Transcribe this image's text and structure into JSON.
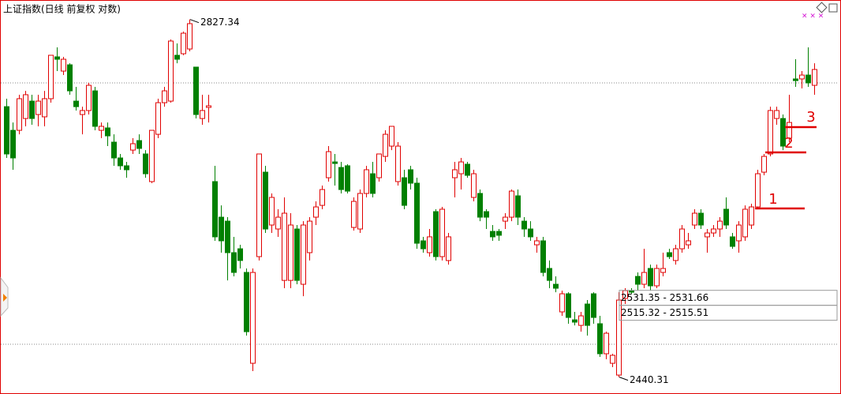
{
  "chart_data": {
    "type": "candlestick",
    "title": "上证指数(日线 前复权 对数)",
    "up_color": "#e00000",
    "down_color": "#008000",
    "ylim": [
      2424.6,
      2845
    ],
    "high_label": 2827.34,
    "low_label": 2440.31,
    "gaps": [
      {
        "low": 2531.35,
        "high": 2531.66,
        "label": "2531.35 - 2531.66"
      },
      {
        "low": 2515.32,
        "high": 2515.51,
        "label": "2515.32 - 2515.51"
      }
    ],
    "markers": [
      "1",
      "2",
      "3"
    ],
    "candles": [
      [
        2733.0,
        2741.6,
        2677.5,
        2681.8
      ],
      [
        2707.4,
        2715.9,
        2664.7,
        2677.5
      ],
      [
        2707.4,
        2745.9,
        2703.1,
        2741.6
      ],
      [
        2720.2,
        2750.1,
        2711.7,
        2745.9
      ],
      [
        2739.0,
        2745.9,
        2713.4,
        2720.2
      ],
      [
        2724.5,
        2745.9,
        2711.7,
        2739.0
      ],
      [
        2722.0,
        2750.1,
        2711.7,
        2741.6
      ],
      [
        2741.6,
        2788.6,
        2737.3,
        2788.6
      ],
      [
        2786.9,
        2797.1,
        2771.5,
        2784.3
      ],
      [
        2771.5,
        2786.9,
        2767.2,
        2784.3
      ],
      [
        2778.3,
        2780.0,
        2745.9,
        2750.1
      ],
      [
        2739.0,
        2754.4,
        2728.8,
        2733.0
      ],
      [
        2724.5,
        2733.0,
        2703.1,
        2728.8
      ],
      [
        2728.8,
        2758.7,
        2724.5,
        2756.1
      ],
      [
        2750.1,
        2754.4,
        2707.4,
        2711.7
      ],
      [
        2707.4,
        2715.9,
        2698.9,
        2711.7
      ],
      [
        2710.0,
        2715.9,
        2690.3,
        2701.4
      ],
      [
        2694.6,
        2703.1,
        2669.0,
        2677.5
      ],
      [
        2677.5,
        2681.8,
        2664.7,
        2669.0
      ],
      [
        2669.0,
        2673.2,
        2656.1,
        2664.7
      ],
      [
        2686.0,
        2698.9,
        2681.8,
        2692.9
      ],
      [
        2696.3,
        2703.1,
        2681.8,
        2687.8
      ],
      [
        2681.8,
        2686.0,
        2656.1,
        2660.4
      ],
      [
        2651.9,
        2707.4,
        2650.2,
        2707.4
      ],
      [
        2703.1,
        2741.6,
        2698.9,
        2737.3
      ],
      [
        2737.3,
        2754.4,
        2733.0,
        2750.1
      ],
      [
        2739.0,
        2805.7,
        2737.3,
        2804.0
      ],
      [
        2788.6,
        2801.4,
        2780.0,
        2784.3
      ],
      [
        2790.3,
        2814.2,
        2788.6,
        2812.5
      ],
      [
        2795.4,
        2827.34,
        2792.9,
        2822.8
      ],
      [
        2775.8,
        2775.8,
        2720.2,
        2724.5
      ],
      [
        2720.2,
        2745.9,
        2713.4,
        2728.8
      ],
      [
        2732.2,
        2745.9,
        2715.9,
        2733.9
      ],
      [
        2651.9,
        2669.0,
        2587.8,
        2592.1
      ],
      [
        2613.4,
        2626.2,
        2575.0,
        2587.8
      ],
      [
        2609.1,
        2613.4,
        2545.0,
        2575.0
      ],
      [
        2575.0,
        2592.1,
        2549.3,
        2553.6
      ],
      [
        2579.2,
        2583.5,
        2557.9,
        2566.5
      ],
      [
        2553.6,
        2557.9,
        2485.3,
        2489.5
      ],
      [
        2455.3,
        2557.9,
        2446.8,
        2553.6
      ],
      [
        2570.7,
        2681.8,
        2566.5,
        2681.8
      ],
      [
        2662.1,
        2669.0,
        2596.3,
        2600.6
      ],
      [
        2604.9,
        2639.1,
        2596.3,
        2634.8
      ],
      [
        2600.6,
        2622.0,
        2592.1,
        2613.4
      ],
      [
        2545.0,
        2634.8,
        2536.5,
        2617.7
      ],
      [
        2545.0,
        2617.7,
        2536.5,
        2604.9
      ],
      [
        2600.6,
        2604.9,
        2540.8,
        2545.0
      ],
      [
        2540.8,
        2609.1,
        2527.9,
        2604.9
      ],
      [
        2575.0,
        2613.4,
        2566.5,
        2609.1
      ],
      [
        2613.4,
        2630.5,
        2604.9,
        2624.5
      ],
      [
        2626.2,
        2647.6,
        2622.0,
        2643.3
      ],
      [
        2656.1,
        2690.3,
        2651.9,
        2684.3
      ],
      [
        2673.2,
        2681.8,
        2647.6,
        2671.5
      ],
      [
        2667.2,
        2673.2,
        2639.1,
        2643.3
      ],
      [
        2669.0,
        2670.7,
        2639.1,
        2641.6
      ],
      [
        2602.3,
        2634.8,
        2598.9,
        2630.5
      ],
      [
        2600.6,
        2643.3,
        2596.3,
        2639.1
      ],
      [
        2639.1,
        2669.0,
        2634.8,
        2664.7
      ],
      [
        2660.4,
        2673.2,
        2634.8,
        2639.1
      ],
      [
        2656.1,
        2681.8,
        2651.9,
        2681.8
      ],
      [
        2679.2,
        2707.4,
        2673.2,
        2703.1
      ],
      [
        2690.3,
        2711.7,
        2686.0,
        2711.7
      ],
      [
        2651.9,
        2694.6,
        2647.6,
        2690.3
      ],
      [
        2656.1,
        2664.7,
        2622.0,
        2626.2
      ],
      [
        2664.7,
        2669.0,
        2643.3,
        2650.2
      ],
      [
        2650.2,
        2656.1,
        2579.2,
        2585.2
      ],
      [
        2587.8,
        2592.1,
        2575.0,
        2579.2
      ],
      [
        2575.0,
        2600.6,
        2570.7,
        2592.1
      ],
      [
        2619.4,
        2622.0,
        2566.5,
        2570.7
      ],
      [
        2570.7,
        2624.5,
        2566.5,
        2622.0
      ],
      [
        2566.5,
        2596.3,
        2562.1,
        2592.1
      ],
      [
        2656.1,
        2673.2,
        2634.8,
        2664.7
      ],
      [
        2660.4,
        2677.5,
        2643.3,
        2673.2
      ],
      [
        2670.7,
        2673.2,
        2656.1,
        2658.7
      ],
      [
        2634.8,
        2664.7,
        2630.5,
        2660.4
      ],
      [
        2639.1,
        2643.3,
        2609.1,
        2613.4
      ],
      [
        2619.4,
        2622.0,
        2600.6,
        2613.4
      ],
      [
        2598.0,
        2604.9,
        2587.8,
        2592.1
      ],
      [
        2598.0,
        2600.6,
        2587.8,
        2593.8
      ],
      [
        2609.1,
        2617.7,
        2600.6,
        2613.4
      ],
      [
        2613.4,
        2643.3,
        2609.1,
        2641.6
      ],
      [
        2636.5,
        2643.3,
        2604.9,
        2613.4
      ],
      [
        2609.1,
        2613.4,
        2592.1,
        2600.6
      ],
      [
        2600.6,
        2609.1,
        2587.8,
        2592.1
      ],
      [
        2583.5,
        2592.1,
        2575.0,
        2587.8
      ],
      [
        2587.8,
        2592.1,
        2549.3,
        2553.6
      ],
      [
        2557.9,
        2566.5,
        2536.5,
        2545.0
      ],
      [
        2540.8,
        2549.3,
        2532.2,
        2536.5
      ],
      [
        2510.9,
        2533.9,
        2506.6,
        2530.5
      ],
      [
        2530.5,
        2532.2,
        2498.1,
        2504.9
      ],
      [
        2502.3,
        2510.9,
        2496.3,
        2499.8
      ],
      [
        2496.3,
        2510.9,
        2489.5,
        2506.6
      ],
      [
        2519.4,
        2523.7,
        2485.3,
        2496.3
      ],
      [
        2530.5,
        2532.2,
        2498.1,
        2504.9
      ],
      [
        2498.1,
        2506.6,
        2462.2,
        2465.6
      ],
      [
        2465.6,
        2489.5,
        2459.6,
        2487.8
      ],
      [
        2455.3,
        2465.6,
        2451.1,
        2463.9
      ],
      [
        2442.5,
        2532.2,
        2440.31,
        2523.7
      ],
      [
        2525.4,
        2536.5,
        2519.4,
        2533.9
      ],
      [
        2533.9,
        2536.5,
        2530.5,
        2532.2
      ],
      [
        2549.3,
        2553.6,
        2533.9,
        2540.8
      ],
      [
        2540.8,
        2579.2,
        2536.5,
        2553.6
      ],
      [
        2557.9,
        2562.1,
        2533.9,
        2539.1
      ],
      [
        2539.1,
        2562.1,
        2536.5,
        2557.9
      ],
      [
        2553.6,
        2575.0,
        2549.3,
        2557.9
      ],
      [
        2575.0,
        2579.2,
        2568.1,
        2570.7
      ],
      [
        2566.5,
        2583.5,
        2562.1,
        2579.2
      ],
      [
        2579.2,
        2604.9,
        2575.0,
        2600.6
      ],
      [
        2583.5,
        2596.3,
        2579.2,
        2587.8
      ],
      [
        2604.9,
        2622.0,
        2600.6,
        2617.7
      ],
      [
        2617.7,
        2622.0,
        2600.6,
        2604.9
      ],
      [
        2592.1,
        2600.6,
        2575.0,
        2596.3
      ],
      [
        2596.3,
        2604.9,
        2592.1,
        2600.6
      ],
      [
        2600.6,
        2613.4,
        2592.1,
        2609.1
      ],
      [
        2622.0,
        2634.8,
        2600.6,
        2604.9
      ],
      [
        2592.1,
        2596.3,
        2579.2,
        2581.8
      ],
      [
        2587.8,
        2609.1,
        2575.0,
        2604.9
      ],
      [
        2592.1,
        2626.2,
        2587.8,
        2622.0
      ],
      [
        2604.9,
        2628.0,
        2600.6,
        2624.5
      ],
      [
        2624.5,
        2664.7,
        2622.0,
        2660.4
      ],
      [
        2662.1,
        2681.8,
        2658.7,
        2679.2
      ],
      [
        2681.8,
        2733.0,
        2679.2,
        2728.8
      ],
      [
        2720.2,
        2733.0,
        2713.4,
        2728.8
      ],
      [
        2720.2,
        2724.5,
        2686.0,
        2690.3
      ],
      [
        2698.9,
        2745.9,
        2694.6,
        2715.9
      ],
      [
        2763.0,
        2784.3,
        2754.4,
        2761.2
      ],
      [
        2763.0,
        2771.5,
        2752.7,
        2767.2
      ],
      [
        2767.2,
        2797.1,
        2754.4,
        2758.7
      ],
      [
        2756.1,
        2780.0,
        2745.9,
        2773.2
      ]
    ]
  }
}
